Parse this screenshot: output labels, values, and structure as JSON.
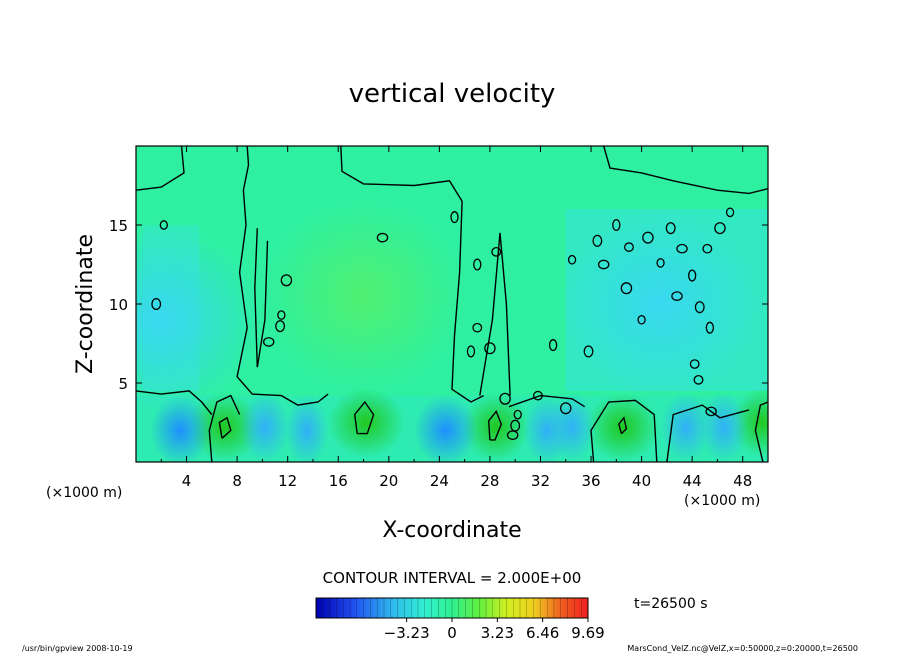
{
  "chart_data": {
    "type": "heatmap",
    "title": "vertical velocity",
    "xlabel": "X-coordinate",
    "ylabel": "Z-coordinate",
    "x_unit_left": "(×1000 m)",
    "x_unit_right": "(×1000 m)",
    "xlim": [
      0,
      50
    ],
    "ylim": [
      0,
      20
    ],
    "x_ticks": [
      4,
      8,
      12,
      16,
      20,
      24,
      28,
      32,
      36,
      40,
      44,
      48
    ],
    "y_ticks": [
      5,
      10,
      15
    ],
    "contour_interval_label": "CONTOUR INTERVAL = 2.000E+00",
    "time_label": "t=26500  s",
    "colorbar": {
      "range": [
        -9.69,
        9.69
      ],
      "tick_values": [
        -3.23,
        0,
        3.23,
        6.46,
        9.69
      ],
      "tick_labels": [
        "−3.23",
        "0",
        "3.23",
        "6.46",
        "9.69"
      ]
    },
    "updrafts": [
      {
        "x": 7,
        "z": 2.2,
        "amplitude": 3.4
      },
      {
        "x": 18.2,
        "z": 2.5,
        "amplitude": 3.6
      },
      {
        "x": 28.5,
        "z": 2.2,
        "amplitude": 3.0
      },
      {
        "x": 38.5,
        "z": 2.2,
        "amplitude": 3.4
      },
      {
        "x": 49.5,
        "z": 2.5,
        "amplitude": 2.6
      },
      {
        "x": 18,
        "z": 10.5,
        "amplitude": 1.4
      }
    ],
    "downdrafts": [
      {
        "x": 3.5,
        "z": 2.0,
        "amplitude": -2.6
      },
      {
        "x": 10.2,
        "z": 2.2,
        "amplitude": -2.0
      },
      {
        "x": 13.5,
        "z": 2.0,
        "amplitude": -1.6
      },
      {
        "x": 24.5,
        "z": 2.0,
        "amplitude": -2.8
      },
      {
        "x": 32.5,
        "z": 2.0,
        "amplitude": -1.8
      },
      {
        "x": 34.5,
        "z": 2.2,
        "amplitude": -1.8
      },
      {
        "x": 43.5,
        "z": 2.2,
        "amplitude": -2.0
      },
      {
        "x": 46.5,
        "z": 2.2,
        "amplitude": -1.8
      },
      {
        "x": 41.5,
        "z": 10.0,
        "amplitude": -1.0
      },
      {
        "x": 2.0,
        "z": 9.0,
        "amplitude": -0.9
      }
    ]
  },
  "footer": {
    "left": "/usr/bin/gpview   2008-10-19",
    "right": "MarsCond_VelZ.nc@VelZ,x=0:50000,z=0:20000,t=26500"
  }
}
